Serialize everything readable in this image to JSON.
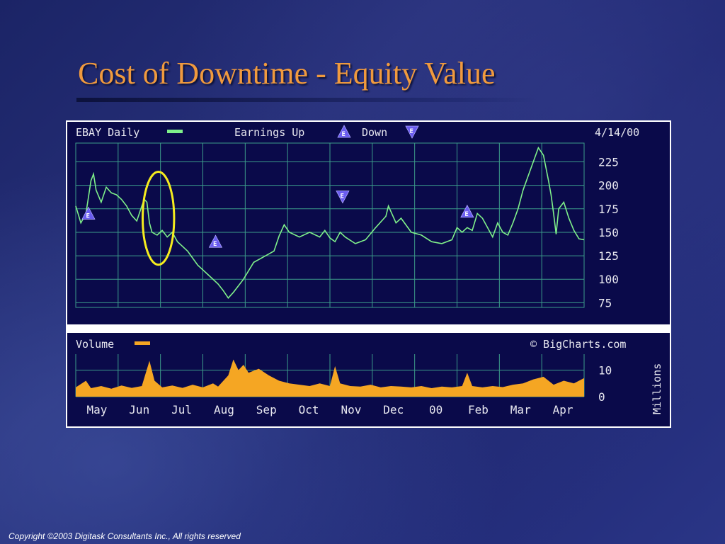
{
  "slide": {
    "title": "Cost of Downtime - Equity Value",
    "footer": "Copyright ©2003 Digitask Consultants Inc., All rights reserved"
  },
  "colors": {
    "chart_bg": "#0a0a4a",
    "grid": "#3c9c8a",
    "price_line": "#7ff08a",
    "volume": "#f5a623",
    "label_text": "#e8e8f0",
    "earnings_marker": "#6a5cf0",
    "highlight_circle": "#f5ec1e"
  },
  "chart_header": {
    "ticker_label": "EBAY Daily",
    "earnings_label": "Earnings Up",
    "down_label": "Down",
    "date": "4/14/00",
    "volume_label": "Volume",
    "source": "© BigCharts.com",
    "volume_unit": "Millions"
  },
  "chart_data": [
    {
      "type": "line",
      "series": [
        {
          "name": "EBAY Daily",
          "color": "#7ff08a"
        }
      ],
      "x_tick_labels": [
        "May",
        "Jun",
        "Jul",
        "Aug",
        "Sep",
        "Oct",
        "Nov",
        "Dec",
        "00",
        "Feb",
        "Mar",
        "Apr"
      ],
      "y_ticks": [
        225,
        200,
        175,
        150,
        125,
        100,
        75
      ],
      "ylim": [
        70,
        245
      ],
      "grid": true,
      "points": [
        [
          0.0,
          178
        ],
        [
          0.01,
          160
        ],
        [
          0.02,
          170
        ],
        [
          0.03,
          205
        ],
        [
          0.035,
          212
        ],
        [
          0.04,
          195
        ],
        [
          0.05,
          182
        ],
        [
          0.06,
          198
        ],
        [
          0.07,
          192
        ],
        [
          0.08,
          190
        ],
        [
          0.09,
          185
        ],
        [
          0.1,
          178
        ],
        [
          0.11,
          168
        ],
        [
          0.12,
          162
        ],
        [
          0.13,
          178
        ],
        [
          0.135,
          185
        ],
        [
          0.14,
          182
        ],
        [
          0.145,
          160
        ],
        [
          0.15,
          150
        ],
        [
          0.16,
          147
        ],
        [
          0.17,
          152
        ],
        [
          0.18,
          145
        ],
        [
          0.19,
          150
        ],
        [
          0.2,
          140
        ],
        [
          0.22,
          130
        ],
        [
          0.24,
          115
        ],
        [
          0.26,
          105
        ],
        [
          0.28,
          95
        ],
        [
          0.29,
          88
        ],
        [
          0.3,
          80
        ],
        [
          0.31,
          86
        ],
        [
          0.33,
          100
        ],
        [
          0.35,
          118
        ],
        [
          0.37,
          124
        ],
        [
          0.39,
          130
        ],
        [
          0.4,
          146
        ],
        [
          0.41,
          158
        ],
        [
          0.42,
          150
        ],
        [
          0.44,
          145
        ],
        [
          0.46,
          150
        ],
        [
          0.48,
          145
        ],
        [
          0.49,
          152
        ],
        [
          0.5,
          144
        ],
        [
          0.51,
          140
        ],
        [
          0.52,
          150
        ],
        [
          0.53,
          145
        ],
        [
          0.55,
          138
        ],
        [
          0.57,
          142
        ],
        [
          0.59,
          155
        ],
        [
          0.61,
          167
        ],
        [
          0.615,
          178
        ],
        [
          0.62,
          172
        ],
        [
          0.63,
          160
        ],
        [
          0.64,
          165
        ],
        [
          0.66,
          150
        ],
        [
          0.68,
          147
        ],
        [
          0.7,
          140
        ],
        [
          0.72,
          138
        ],
        [
          0.74,
          142
        ],
        [
          0.75,
          155
        ],
        [
          0.76,
          150
        ],
        [
          0.77,
          155
        ],
        [
          0.78,
          152
        ],
        [
          0.79,
          170
        ],
        [
          0.8,
          165
        ],
        [
          0.81,
          155
        ],
        [
          0.82,
          145
        ],
        [
          0.83,
          160
        ],
        [
          0.84,
          150
        ],
        [
          0.85,
          147
        ],
        [
          0.86,
          160
        ],
        [
          0.87,
          175
        ],
        [
          0.88,
          195
        ],
        [
          0.89,
          210
        ],
        [
          0.9,
          225
        ],
        [
          0.91,
          240
        ],
        [
          0.92,
          232
        ],
        [
          0.93,
          205
        ],
        [
          0.935,
          190
        ],
        [
          0.94,
          170
        ],
        [
          0.945,
          148
        ],
        [
          0.95,
          175
        ],
        [
          0.96,
          182
        ],
        [
          0.97,
          165
        ],
        [
          0.98,
          152
        ],
        [
          0.99,
          143
        ],
        [
          1.0,
          142
        ]
      ],
      "earnings_markers": [
        {
          "direction": "up",
          "x": 0.025,
          "y": 170
        },
        {
          "direction": "up",
          "x": 0.275,
          "y": 140
        },
        {
          "direction": "down",
          "x": 0.525,
          "y": 188
        },
        {
          "direction": "up",
          "x": 0.77,
          "y": 172
        }
      ],
      "highlight_circle_x": [
        0.14,
        0.185
      ]
    },
    {
      "type": "area",
      "series": [
        {
          "name": "Volume",
          "color": "#f5a623"
        }
      ],
      "x_tick_labels": [
        "May",
        "Jun",
        "Jul",
        "Aug",
        "Sep",
        "Oct",
        "Nov",
        "Dec",
        "00",
        "Feb",
        "Mar",
        "Apr"
      ],
      "y_ticks": [
        10,
        0
      ],
      "ylim": [
        0,
        16
      ],
      "grid": true,
      "points": [
        [
          0.0,
          3.5
        ],
        [
          0.02,
          6
        ],
        [
          0.03,
          3.2
        ],
        [
          0.05,
          4
        ],
        [
          0.07,
          3
        ],
        [
          0.09,
          4.2
        ],
        [
          0.11,
          3.3
        ],
        [
          0.13,
          4
        ],
        [
          0.145,
          13.5
        ],
        [
          0.155,
          6
        ],
        [
          0.17,
          3.5
        ],
        [
          0.19,
          4.2
        ],
        [
          0.21,
          3.3
        ],
        [
          0.23,
          4.5
        ],
        [
          0.25,
          3.5
        ],
        [
          0.27,
          5
        ],
        [
          0.28,
          3.8
        ],
        [
          0.3,
          8
        ],
        [
          0.31,
          14
        ],
        [
          0.32,
          10
        ],
        [
          0.33,
          12
        ],
        [
          0.34,
          9
        ],
        [
          0.36,
          10.5
        ],
        [
          0.38,
          8
        ],
        [
          0.4,
          6
        ],
        [
          0.42,
          5
        ],
        [
          0.44,
          4.5
        ],
        [
          0.46,
          4
        ],
        [
          0.48,
          5
        ],
        [
          0.5,
          4
        ],
        [
          0.51,
          11.5
        ],
        [
          0.52,
          5
        ],
        [
          0.54,
          4
        ],
        [
          0.56,
          3.8
        ],
        [
          0.58,
          4.5
        ],
        [
          0.6,
          3.5
        ],
        [
          0.62,
          4
        ],
        [
          0.64,
          3.8
        ],
        [
          0.66,
          3.5
        ],
        [
          0.68,
          4
        ],
        [
          0.7,
          3.2
        ],
        [
          0.72,
          3.8
        ],
        [
          0.74,
          3.5
        ],
        [
          0.76,
          4
        ],
        [
          0.77,
          9
        ],
        [
          0.78,
          4
        ],
        [
          0.8,
          3.5
        ],
        [
          0.82,
          4
        ],
        [
          0.84,
          3.6
        ],
        [
          0.86,
          4.5
        ],
        [
          0.88,
          5
        ],
        [
          0.9,
          6.5
        ],
        [
          0.92,
          7.5
        ],
        [
          0.94,
          4.5
        ],
        [
          0.96,
          6
        ],
        [
          0.98,
          5
        ],
        [
          1.0,
          7
        ]
      ]
    }
  ]
}
